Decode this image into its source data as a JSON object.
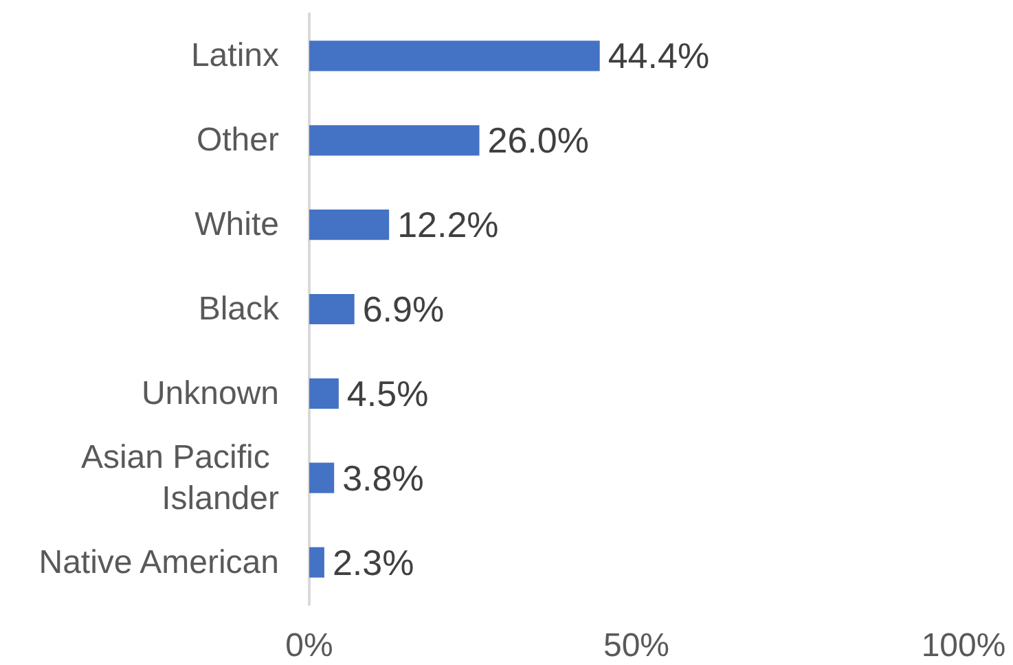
{
  "chart_data": {
    "type": "bar",
    "orientation": "horizontal",
    "categories": [
      "Latinx",
      "Other",
      "White",
      "Black",
      "Unknown",
      "Asian Pacific Islander",
      "Native American"
    ],
    "values": [
      44.4,
      26.0,
      12.2,
      6.9,
      4.5,
      3.8,
      2.3
    ],
    "value_labels": [
      "44.4%",
      "26.0%",
      "12.2%",
      "6.9%",
      "4.5%",
      "3.8%",
      "2.3%"
    ],
    "color": "#4472c4",
    "xlim": [
      0,
      100
    ],
    "xticks": [
      {
        "value": 0,
        "label": "0%"
      },
      {
        "value": 50,
        "label": "50%"
      },
      {
        "value": 100,
        "label": "100%"
      }
    ]
  }
}
